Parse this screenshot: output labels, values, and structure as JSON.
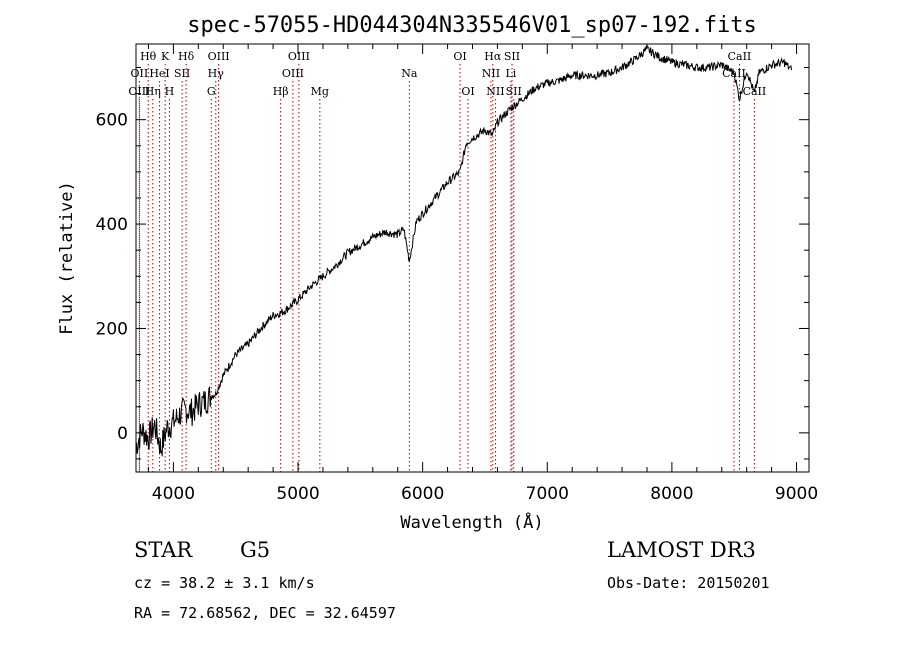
{
  "chart_data": {
    "type": "line",
    "title": "spec-57055-HD044304N335546V01_sp07-192.fits",
    "xlabel": "Wavelength (Å)",
    "ylabel": "Flux (relative)",
    "xlim": [
      3700,
      9100
    ],
    "ylim": [
      -75,
      745
    ],
    "xticks": [
      4000,
      5000,
      6000,
      7000,
      8000,
      9000
    ],
    "yticks": [
      0,
      200,
      400,
      600
    ],
    "series": [
      {
        "name": "flux",
        "x": [
          3700,
          3750,
          3800,
          3850,
          3900,
          3950,
          4000,
          4050,
          4100,
          4150,
          4200,
          4250,
          4300,
          4340,
          4400,
          4500,
          4600,
          4700,
          4800,
          4861,
          4900,
          5000,
          5100,
          5200,
          5300,
          5400,
          5500,
          5600,
          5700,
          5800,
          5850,
          5893,
          5950,
          6000,
          6100,
          6200,
          6300,
          6350,
          6400,
          6500,
          6560,
          6600,
          6700,
          6800,
          6900,
          7000,
          7100,
          7200,
          7300,
          7400,
          7500,
          7600,
          7700,
          7800,
          7900,
          8000,
          8100,
          8200,
          8300,
          8400,
          8500,
          8542,
          8600,
          8662,
          8700,
          8800,
          8900,
          8960
        ],
        "y": [
          -25,
          5,
          -10,
          15,
          -30,
          10,
          20,
          35,
          45,
          40,
          55,
          60,
          70,
          75,
          110,
          150,
          170,
          200,
          225,
          230,
          235,
          255,
          280,
          300,
          320,
          345,
          360,
          375,
          385,
          380,
          390,
          330,
          405,
          420,
          450,
          480,
          500,
          555,
          565,
          580,
          570,
          595,
          620,
          640,
          660,
          670,
          675,
          685,
          685,
          685,
          690,
          700,
          715,
          735,
          720,
          710,
          705,
          700,
          700,
          705,
          690,
          640,
          695,
          650,
          690,
          705,
          710,
          695
        ]
      }
    ],
    "spectral_lines": [
      {
        "label": "Hθ",
        "wl": 3798,
        "row": 0
      },
      {
        "label": "OII",
        "wl": 3727,
        "row": 1
      },
      {
        "label": "OIII",
        "wl": 3727,
        "row": 2
      },
      {
        "label": "K",
        "wl": 3934,
        "row": 0
      },
      {
        "label": "HeI",
        "wl": 3889,
        "row": 1
      },
      {
        "label": "Hη",
        "wl": 3835,
        "row": 2
      },
      {
        "label": "Hδ",
        "wl": 4102,
        "row": 0
      },
      {
        "label": "SII",
        "wl": 4070,
        "row": 1
      },
      {
        "label": "H",
        "wl": 3968,
        "row": 2
      },
      {
        "label": "OIII",
        "wl": 4363,
        "row": 0
      },
      {
        "label": "Hγ",
        "wl": 4340,
        "row": 1
      },
      {
        "label": "G",
        "wl": 4304,
        "row": 2
      },
      {
        "label": "OIII",
        "wl": 5007,
        "row": 0
      },
      {
        "label": "OIII",
        "wl": 4959,
        "row": 1
      },
      {
        "label": "Hβ",
        "wl": 4861,
        "row": 2
      },
      {
        "label": "Mg",
        "wl": 5175,
        "row": 2
      },
      {
        "label": "Na",
        "wl": 5893,
        "row": 1
      },
      {
        "label": "OI",
        "wl": 6300,
        "row": 0
      },
      {
        "label": "OI",
        "wl": 6364,
        "row": 2
      },
      {
        "label": "Hα",
        "wl": 6563,
        "row": 0
      },
      {
        "label": "SII",
        "wl": 6717,
        "row": 0
      },
      {
        "label": "NII",
        "wl": 6548,
        "row": 1
      },
      {
        "label": "Li",
        "wl": 6708,
        "row": 1
      },
      {
        "label": "NII",
        "wl": 6584,
        "row": 2
      },
      {
        "label": "SII",
        "wl": 6731,
        "row": 2
      },
      {
        "label": "CaII",
        "wl": 8542,
        "row": 0
      },
      {
        "label": "CaII",
        "wl": 8498,
        "row": 1
      },
      {
        "label": "CaII",
        "wl": 8662,
        "row": 2
      }
    ]
  },
  "info": {
    "object_class": "STAR",
    "subclass": "G5",
    "survey": "LAMOST DR3",
    "redshift": "cz = 38.2 ± 3.1 km/s",
    "obs_date": "Obs-Date: 20150201",
    "coords": "RA =  72.68562, DEC =  32.64597"
  }
}
